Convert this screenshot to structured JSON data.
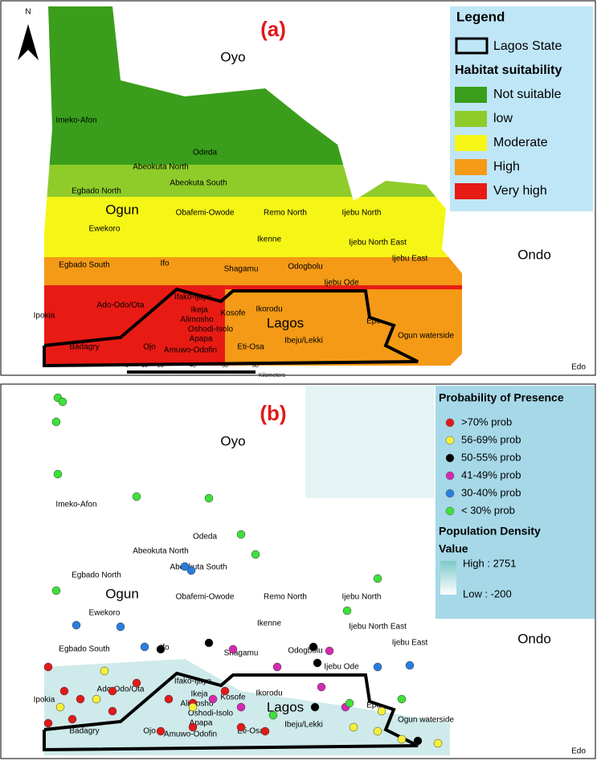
{
  "panel_a": {
    "label": "(a)",
    "north": "N",
    "legend": {
      "title": "Legend",
      "boundary": "Lagos State",
      "subtitle": "Habitat suitability",
      "classes": [
        {
          "name": "Not suitable",
          "color": "#3a9e1c"
        },
        {
          "name": "low",
          "color": "#8fcc2a"
        },
        {
          "name": "Moderate",
          "color": "#f5f516"
        },
        {
          "name": "High",
          "color": "#f59a16"
        },
        {
          "name": "Very high",
          "color": "#e81b14"
        }
      ]
    },
    "scale_bar": {
      "ticks": [
        "0",
        "10",
        "20",
        "40",
        "60",
        "80"
      ],
      "unit": "Kilometers"
    }
  },
  "panel_b": {
    "label": "(b)",
    "legend": {
      "title": "Probability of Presence",
      "classes": [
        {
          "name": ">70% prob",
          "color": "#e01a1a"
        },
        {
          "name": "56-69% prob",
          "color": "#f5f03a"
        },
        {
          "name": "50-55% prob",
          "color": "#000000"
        },
        {
          "name": "41-49% prob",
          "color": "#d42ab0"
        },
        {
          "name": "30-40% prob",
          "color": "#2a7de0"
        },
        {
          "name": "< 30% prob",
          "color": "#3ee03a"
        }
      ],
      "density_title": "Population Density",
      "density_sub": "Value",
      "high": "High : 2751",
      "low": "Low : -200"
    }
  },
  "place_names": [
    "Oyo",
    "Imeko-Afon",
    "Odeda",
    "Abeokuta North",
    "Abeokuta South",
    "Egbado North",
    "Ogun",
    "Ewekoro",
    "Obafemi-Owode",
    "Remo North",
    "Ijebu North",
    "Ikenne",
    "Ijebu North East",
    "Ijebu East",
    "Ondo",
    "Egbado South",
    "Ifo",
    "Shagamu",
    "Odogbolu",
    "Ijebu Ode",
    "Ipokia",
    "Ado-Odo/Ota",
    "Ifako-Ijaye",
    "Ikeja",
    "Kosofe",
    "Ikorodu",
    "Alimosho",
    "Oshodi-Isolo",
    "Apapa",
    "Lagos",
    "Epe",
    "Ogun waterside",
    "Badagry",
    "Ojo",
    "Amuwo-Odofin",
    "Eti-Osa",
    "Ibeju/Lekki",
    "Edo"
  ]
}
